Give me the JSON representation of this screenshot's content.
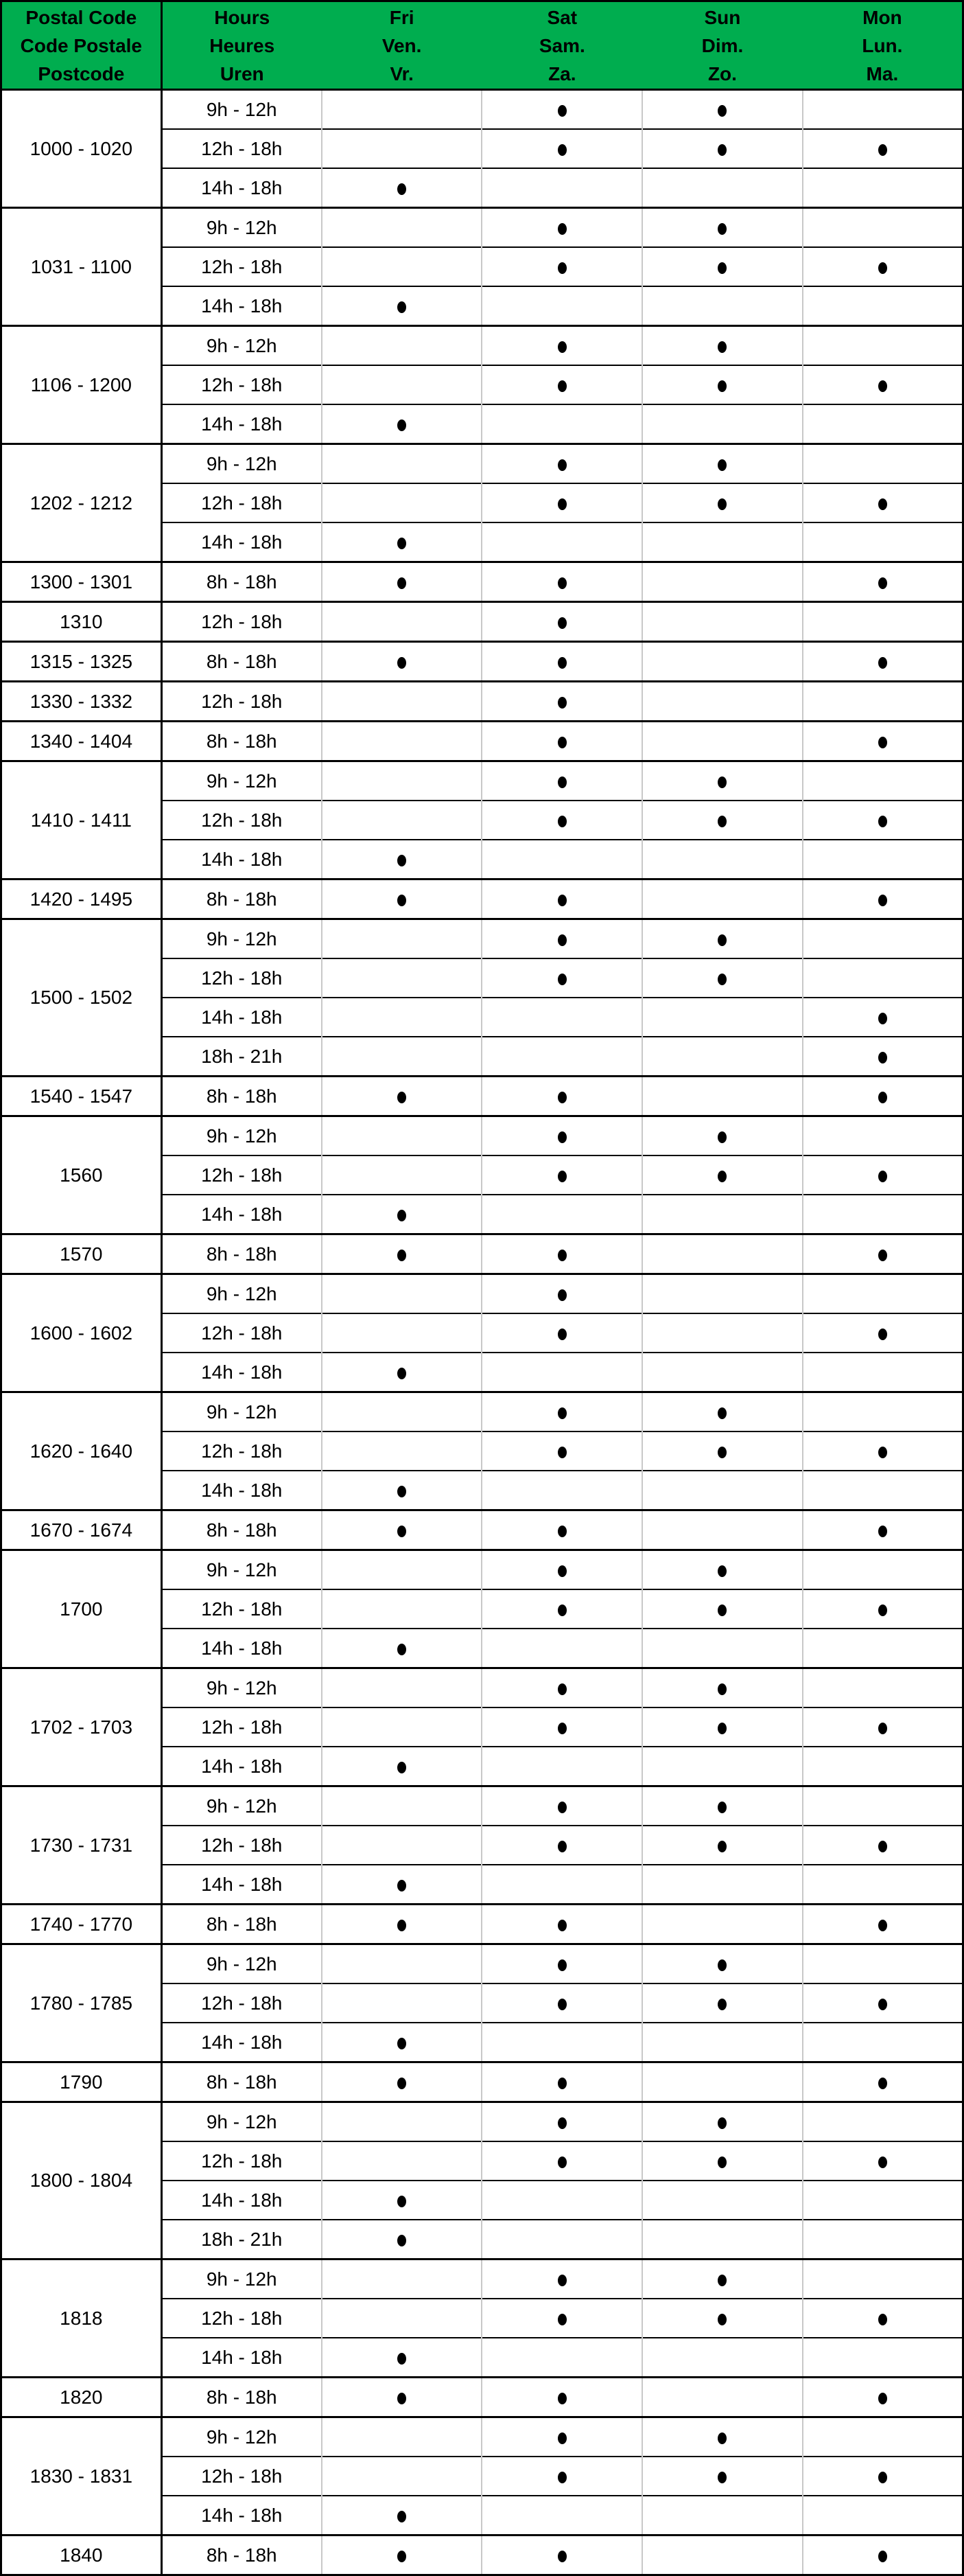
{
  "colors": {
    "header_green": "#00AD4F",
    "border_black": "#000000",
    "grid_gray": "#C8C8C8",
    "text": "#000000",
    "background": "#FFFFFF"
  },
  "table": {
    "header": {
      "postal": [
        "Postal Code",
        "Code Postale",
        "Postcode"
      ],
      "hours": [
        "Hours",
        "Heures",
        "Uren"
      ],
      "days": [
        [
          "Fri",
          "Ven.",
          "Vr."
        ],
        [
          "Sat",
          "Sam.",
          "Za."
        ],
        [
          "Sun",
          "Dim.",
          "Zo."
        ],
        [
          "Mon",
          "Lun.",
          "Ma."
        ]
      ]
    },
    "day_keys": [
      "fri",
      "sat",
      "sun",
      "mon"
    ],
    "groups": [
      {
        "code": "1000 - 1020",
        "rows": [
          {
            "hours": "9h - 12h",
            "days": [
              0,
              1,
              1,
              0
            ]
          },
          {
            "hours": "12h - 18h",
            "days": [
              0,
              1,
              1,
              1
            ]
          },
          {
            "hours": "14h - 18h",
            "days": [
              1,
              0,
              0,
              0
            ]
          }
        ]
      },
      {
        "code": "1031 - 1100",
        "rows": [
          {
            "hours": "9h - 12h",
            "days": [
              0,
              1,
              1,
              0
            ]
          },
          {
            "hours": "12h - 18h",
            "days": [
              0,
              1,
              1,
              1
            ]
          },
          {
            "hours": "14h - 18h",
            "days": [
              1,
              0,
              0,
              0
            ]
          }
        ]
      },
      {
        "code": "1106 - 1200",
        "rows": [
          {
            "hours": "9h - 12h",
            "days": [
              0,
              1,
              1,
              0
            ]
          },
          {
            "hours": "12h - 18h",
            "days": [
              0,
              1,
              1,
              1
            ]
          },
          {
            "hours": "14h - 18h",
            "days": [
              1,
              0,
              0,
              0
            ]
          }
        ]
      },
      {
        "code": "1202 - 1212",
        "rows": [
          {
            "hours": "9h - 12h",
            "days": [
              0,
              1,
              1,
              0
            ]
          },
          {
            "hours": "12h - 18h",
            "days": [
              0,
              1,
              1,
              1
            ]
          },
          {
            "hours": "14h - 18h",
            "days": [
              1,
              0,
              0,
              0
            ]
          }
        ]
      },
      {
        "code": "1300 - 1301",
        "rows": [
          {
            "hours": "8h - 18h",
            "days": [
              1,
              1,
              0,
              1
            ]
          }
        ]
      },
      {
        "code": "1310",
        "rows": [
          {
            "hours": "12h - 18h",
            "days": [
              0,
              1,
              0,
              0
            ]
          }
        ]
      },
      {
        "code": "1315 - 1325",
        "rows": [
          {
            "hours": "8h - 18h",
            "days": [
              1,
              1,
              0,
              1
            ]
          }
        ]
      },
      {
        "code": "1330 - 1332",
        "rows": [
          {
            "hours": "12h - 18h",
            "days": [
              0,
              1,
              0,
              0
            ]
          }
        ]
      },
      {
        "code": "1340 - 1404",
        "rows": [
          {
            "hours": "8h - 18h",
            "days": [
              0,
              1,
              0,
              1
            ]
          }
        ]
      },
      {
        "code": "1410 - 1411",
        "rows": [
          {
            "hours": "9h - 12h",
            "days": [
              0,
              1,
              1,
              0
            ]
          },
          {
            "hours": "12h - 18h",
            "days": [
              0,
              1,
              1,
              1
            ]
          },
          {
            "hours": "14h - 18h",
            "days": [
              1,
              0,
              0,
              0
            ]
          }
        ]
      },
      {
        "code": "1420 - 1495",
        "rows": [
          {
            "hours": "8h - 18h",
            "days": [
              1,
              1,
              0,
              1
            ]
          }
        ]
      },
      {
        "code": "1500 - 1502",
        "rows": [
          {
            "hours": "9h - 12h",
            "days": [
              0,
              1,
              1,
              0
            ]
          },
          {
            "hours": "12h - 18h",
            "days": [
              0,
              1,
              1,
              0
            ]
          },
          {
            "hours": "14h - 18h",
            "days": [
              0,
              0,
              0,
              1
            ]
          },
          {
            "hours": "18h - 21h",
            "days": [
              0,
              0,
              0,
              1
            ]
          }
        ]
      },
      {
        "code": "1540 - 1547",
        "rows": [
          {
            "hours": "8h - 18h",
            "days": [
              1,
              1,
              0,
              1
            ]
          }
        ]
      },
      {
        "code": "1560",
        "rows": [
          {
            "hours": "9h - 12h",
            "days": [
              0,
              1,
              1,
              0
            ]
          },
          {
            "hours": "12h - 18h",
            "days": [
              0,
              1,
              1,
              1
            ]
          },
          {
            "hours": "14h - 18h",
            "days": [
              1,
              0,
              0,
              0
            ]
          }
        ]
      },
      {
        "code": "1570",
        "rows": [
          {
            "hours": "8h - 18h",
            "days": [
              1,
              1,
              0,
              1
            ]
          }
        ]
      },
      {
        "code": "1600 - 1602",
        "rows": [
          {
            "hours": "9h - 12h",
            "days": [
              0,
              1,
              0,
              0
            ]
          },
          {
            "hours": "12h - 18h",
            "days": [
              0,
              1,
              0,
              1
            ]
          },
          {
            "hours": "14h - 18h",
            "days": [
              1,
              0,
              0,
              0
            ]
          }
        ]
      },
      {
        "code": "1620 - 1640",
        "rows": [
          {
            "hours": "9h - 12h",
            "days": [
              0,
              1,
              1,
              0
            ]
          },
          {
            "hours": "12h - 18h",
            "days": [
              0,
              1,
              1,
              1
            ]
          },
          {
            "hours": "14h - 18h",
            "days": [
              1,
              0,
              0,
              0
            ]
          }
        ]
      },
      {
        "code": "1670 - 1674",
        "rows": [
          {
            "hours": "8h - 18h",
            "days": [
              1,
              1,
              0,
              1
            ]
          }
        ]
      },
      {
        "code": "1700",
        "rows": [
          {
            "hours": "9h - 12h",
            "days": [
              0,
              1,
              1,
              0
            ]
          },
          {
            "hours": "12h - 18h",
            "days": [
              0,
              1,
              1,
              1
            ]
          },
          {
            "hours": "14h - 18h",
            "days": [
              1,
              0,
              0,
              0
            ]
          }
        ]
      },
      {
        "code": "1702 - 1703",
        "rows": [
          {
            "hours": "9h - 12h",
            "days": [
              0,
              1,
              1,
              0
            ]
          },
          {
            "hours": "12h - 18h",
            "days": [
              0,
              1,
              1,
              1
            ]
          },
          {
            "hours": "14h - 18h",
            "days": [
              1,
              0,
              0,
              0
            ]
          }
        ]
      },
      {
        "code": "1730 - 1731",
        "rows": [
          {
            "hours": "9h - 12h",
            "days": [
              0,
              1,
              1,
              0
            ]
          },
          {
            "hours": "12h - 18h",
            "days": [
              0,
              1,
              1,
              1
            ]
          },
          {
            "hours": "14h - 18h",
            "days": [
              1,
              0,
              0,
              0
            ]
          }
        ]
      },
      {
        "code": "1740 - 1770",
        "rows": [
          {
            "hours": "8h - 18h",
            "days": [
              1,
              1,
              0,
              1
            ]
          }
        ]
      },
      {
        "code": "1780 - 1785",
        "rows": [
          {
            "hours": "9h - 12h",
            "days": [
              0,
              1,
              1,
              0
            ]
          },
          {
            "hours": "12h - 18h",
            "days": [
              0,
              1,
              1,
              1
            ]
          },
          {
            "hours": "14h - 18h",
            "days": [
              1,
              0,
              0,
              0
            ]
          }
        ]
      },
      {
        "code": "1790",
        "rows": [
          {
            "hours": "8h - 18h",
            "days": [
              1,
              1,
              0,
              1
            ]
          }
        ]
      },
      {
        "code": "1800 - 1804",
        "rows": [
          {
            "hours": "9h - 12h",
            "days": [
              0,
              1,
              1,
              0
            ]
          },
          {
            "hours": "12h - 18h",
            "days": [
              0,
              1,
              1,
              1
            ]
          },
          {
            "hours": "14h - 18h",
            "days": [
              1,
              0,
              0,
              0
            ]
          },
          {
            "hours": "18h - 21h",
            "days": [
              1,
              0,
              0,
              0
            ]
          }
        ]
      },
      {
        "code": "1818",
        "rows": [
          {
            "hours": "9h - 12h",
            "days": [
              0,
              1,
              1,
              0
            ]
          },
          {
            "hours": "12h - 18h",
            "days": [
              0,
              1,
              1,
              1
            ]
          },
          {
            "hours": "14h - 18h",
            "days": [
              1,
              0,
              0,
              0
            ]
          }
        ]
      },
      {
        "code": "1820",
        "rows": [
          {
            "hours": "8h - 18h",
            "days": [
              1,
              1,
              0,
              1
            ]
          }
        ]
      },
      {
        "code": "1830 - 1831",
        "rows": [
          {
            "hours": "9h - 12h",
            "days": [
              0,
              1,
              1,
              0
            ]
          },
          {
            "hours": "12h - 18h",
            "days": [
              0,
              1,
              1,
              1
            ]
          },
          {
            "hours": "14h - 18h",
            "days": [
              1,
              0,
              0,
              0
            ]
          }
        ]
      },
      {
        "code": "1840",
        "rows": [
          {
            "hours": "8h - 18h",
            "days": [
              1,
              1,
              0,
              1
            ]
          }
        ]
      }
    ]
  }
}
